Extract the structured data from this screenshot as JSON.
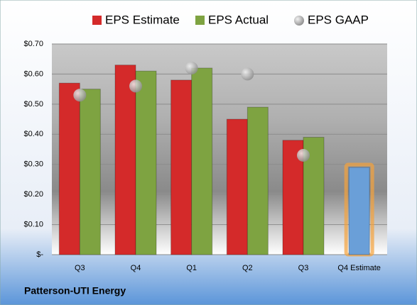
{
  "chart_data": {
    "type": "bar",
    "company": "Patterson-UTI Energy",
    "categories": [
      "Q3",
      "Q4",
      "Q1",
      "Q2",
      "Q3",
      "Q4 Estimate"
    ],
    "series": [
      {
        "name": "EPS Estimate",
        "color": "#d42a2a",
        "values": [
          0.57,
          0.63,
          0.58,
          0.45,
          0.38,
          0.29
        ]
      },
      {
        "name": "EPS Actual",
        "color": "#7ea341",
        "values": [
          0.55,
          0.61,
          0.62,
          0.49,
          0.39,
          null
        ]
      },
      {
        "name": "EPS GAAP",
        "color": "#b8b8b8",
        "marker": "circle",
        "values": [
          0.53,
          0.56,
          0.62,
          0.6,
          0.33,
          null
        ]
      }
    ],
    "highlight": {
      "index": 5,
      "color": "#6a9fd8",
      "glow": "#f5a33c"
    },
    "ylim": [
      0,
      0.7
    ],
    "yticks": [
      {
        "value": 0,
        "label": "$-"
      },
      {
        "value": 0.1,
        "label": "$0.10"
      },
      {
        "value": 0.2,
        "label": "$0.20"
      },
      {
        "value": 0.3,
        "label": "$0.30"
      },
      {
        "value": 0.4,
        "label": "$0.40"
      },
      {
        "value": 0.5,
        "label": "$0.50"
      },
      {
        "value": 0.6,
        "label": "$0.60"
      },
      {
        "value": 0.7,
        "label": "$0.70"
      }
    ],
    "grid": true
  }
}
